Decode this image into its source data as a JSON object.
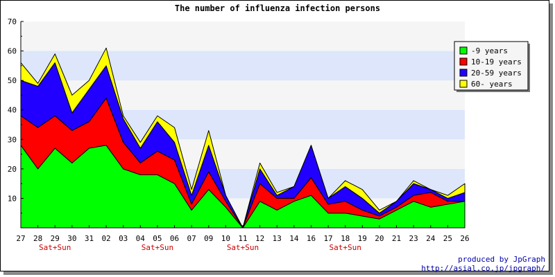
{
  "chart_data": {
    "type": "area",
    "stacked": true,
    "title": "The number of influenza infection persons",
    "categories": [
      "27",
      "28",
      "29",
      "30",
      "31",
      "02",
      "03",
      "04",
      "05",
      "06",
      "07",
      "09",
      "10",
      "11",
      "12",
      "13",
      "14",
      "16",
      "17",
      "18",
      "19",
      "20",
      "21",
      "23",
      "24",
      "25",
      "26"
    ],
    "weekend_labels": {
      "29": "Sat+Sun",
      "05": "Sat+Sun",
      "11": "Sat+Sun",
      "18": "Sat+Sun"
    },
    "ylim": [
      0,
      70
    ],
    "yticks": [
      10,
      20,
      30,
      40,
      50,
      60,
      70
    ],
    "series": [
      {
        "name": "-9 years",
        "color": "#00ff00",
        "values": [
          28,
          20,
          27,
          22,
          27,
          28,
          20,
          18,
          18,
          15,
          6,
          13,
          7,
          0,
          9,
          6,
          9,
          11,
          5,
          5,
          4,
          3,
          6,
          9,
          7,
          8,
          9
        ]
      },
      {
        "name": "10-19 years",
        "color": "#ff0000",
        "values": [
          10,
          14,
          11,
          11,
          9,
          16,
          9,
          4,
          8,
          8,
          2,
          6,
          2,
          0,
          6,
          4,
          1,
          6,
          3,
          4,
          2,
          1,
          1,
          2,
          5,
          1,
          0
        ]
      },
      {
        "name": "20-59 years",
        "color": "#2200ff",
        "values": [
          12,
          14,
          18,
          6,
          11,
          11,
          8,
          5,
          10,
          6,
          3,
          9,
          2,
          0,
          5,
          1,
          4,
          11,
          2,
          5,
          4,
          1,
          2,
          4,
          1,
          1,
          3
        ]
      },
      {
        "name": "60- years",
        "color": "#ffff00",
        "values": [
          6,
          1,
          3,
          6,
          3,
          6,
          1,
          2,
          2,
          5,
          2,
          5,
          0,
          0,
          2,
          1,
          0,
          0,
          0,
          2,
          3,
          1,
          0,
          1,
          0,
          1,
          3
        ]
      }
    ],
    "legend_position": "right"
  },
  "credit": {
    "line1": "produced by JpGraph",
    "line2": "http://asial.co.jp/jpgraph/"
  }
}
